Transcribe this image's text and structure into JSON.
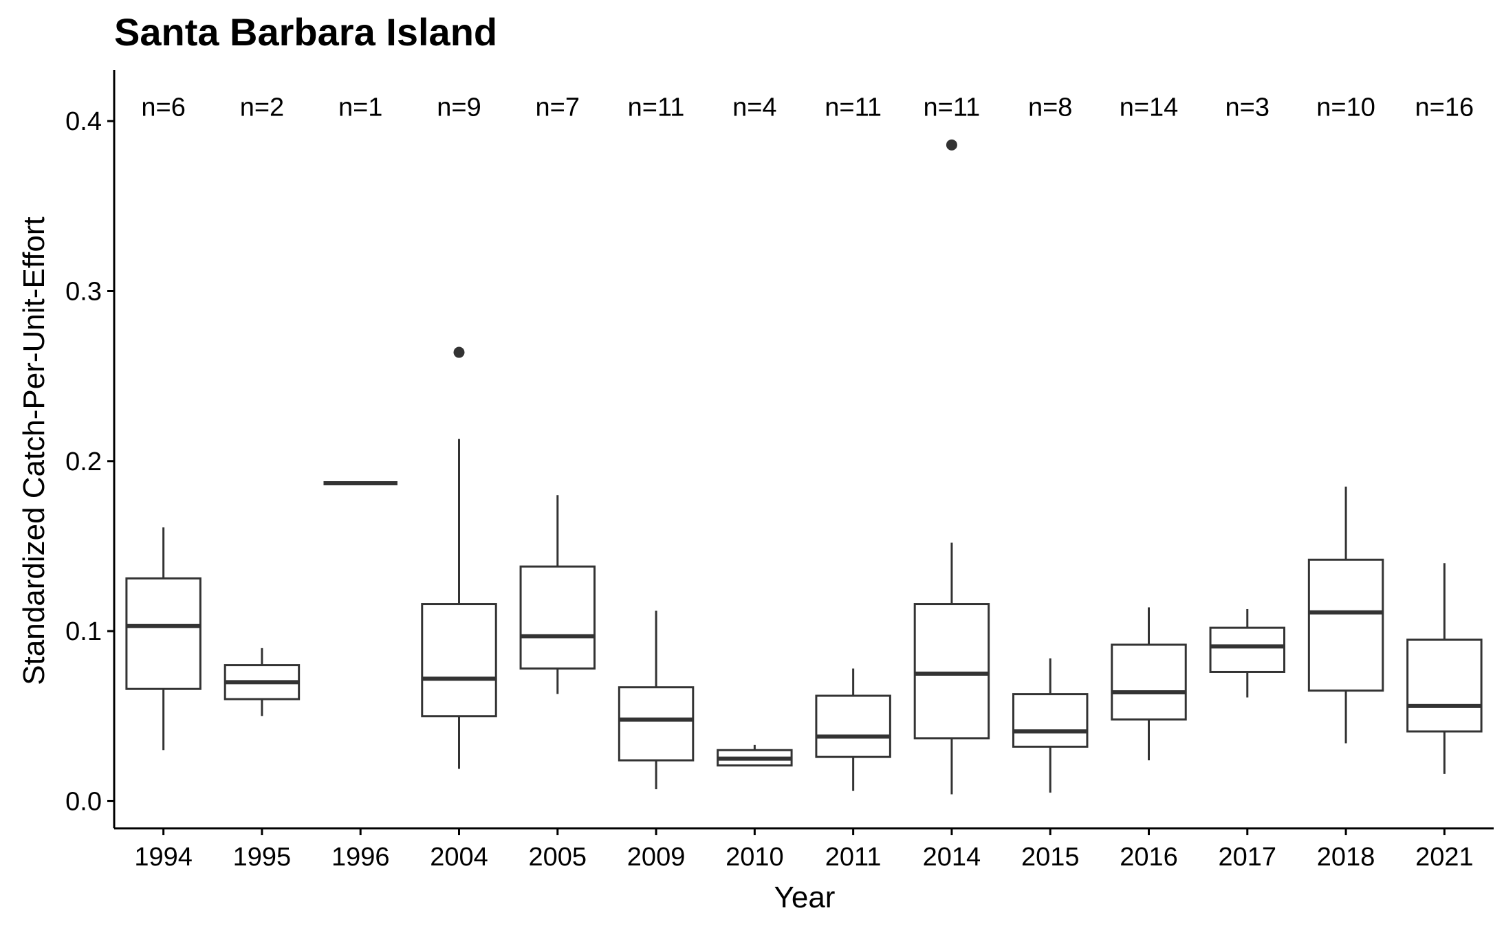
{
  "chart_data": {
    "type": "boxplot",
    "title": "Santa Barbara Island",
    "xlabel": "Year",
    "ylabel": "Standardized Catch-Per-Unit-Effort",
    "ylim": [
      -0.016,
      0.43
    ],
    "yticks": [
      "0.0",
      "0.1",
      "0.2",
      "0.3",
      "0.4"
    ],
    "ytick_values": [
      0.0,
      0.1,
      0.2,
      0.3,
      0.4
    ],
    "grid": false,
    "categories": [
      "1994",
      "1995",
      "1996",
      "2004",
      "2005",
      "2009",
      "2010",
      "2011",
      "2014",
      "2015",
      "2016",
      "2017",
      "2018",
      "2021"
    ],
    "boxes": [
      {
        "year": "1994",
        "n_label": "n=6",
        "whisker_low": 0.03,
        "q1": 0.066,
        "median": 0.103,
        "q3": 0.131,
        "whisker_high": 0.161,
        "outliers": []
      },
      {
        "year": "1995",
        "n_label": "n=2",
        "whisker_low": 0.05,
        "q1": 0.06,
        "median": 0.07,
        "q3": 0.08,
        "whisker_high": 0.09,
        "outliers": []
      },
      {
        "year": "1996",
        "n_label": "n=1",
        "whisker_low": 0.187,
        "q1": 0.187,
        "median": 0.187,
        "q3": 0.187,
        "whisker_high": 0.187,
        "outliers": []
      },
      {
        "year": "2004",
        "n_label": "n=9",
        "whisker_low": 0.019,
        "q1": 0.05,
        "median": 0.072,
        "q3": 0.116,
        "whisker_high": 0.213,
        "outliers": [
          0.264
        ]
      },
      {
        "year": "2005",
        "n_label": "n=7",
        "whisker_low": 0.063,
        "q1": 0.078,
        "median": 0.097,
        "q3": 0.138,
        "whisker_high": 0.18,
        "outliers": []
      },
      {
        "year": "2009",
        "n_label": "n=11",
        "whisker_low": 0.007,
        "q1": 0.024,
        "median": 0.048,
        "q3": 0.067,
        "whisker_high": 0.112,
        "outliers": []
      },
      {
        "year": "2010",
        "n_label": "n=4",
        "whisker_low": 0.021,
        "q1": 0.021,
        "median": 0.025,
        "q3": 0.03,
        "whisker_high": 0.033,
        "outliers": []
      },
      {
        "year": "2011",
        "n_label": "n=11",
        "whisker_low": 0.006,
        "q1": 0.026,
        "median": 0.038,
        "q3": 0.062,
        "whisker_high": 0.078,
        "outliers": []
      },
      {
        "year": "2014",
        "n_label": "n=11",
        "whisker_low": 0.004,
        "q1": 0.037,
        "median": 0.075,
        "q3": 0.116,
        "whisker_high": 0.152,
        "outliers": [
          0.386
        ]
      },
      {
        "year": "2015",
        "n_label": "n=8",
        "whisker_low": 0.005,
        "q1": 0.032,
        "median": 0.041,
        "q3": 0.063,
        "whisker_high": 0.084,
        "outliers": []
      },
      {
        "year": "2016",
        "n_label": "n=14",
        "whisker_low": 0.024,
        "q1": 0.048,
        "median": 0.064,
        "q3": 0.092,
        "whisker_high": 0.114,
        "outliers": []
      },
      {
        "year": "2017",
        "n_label": "n=3",
        "whisker_low": 0.061,
        "q1": 0.076,
        "median": 0.091,
        "q3": 0.102,
        "whisker_high": 0.113,
        "outliers": []
      },
      {
        "year": "2018",
        "n_label": "n=10",
        "whisker_low": 0.034,
        "q1": 0.065,
        "median": 0.111,
        "q3": 0.142,
        "whisker_high": 0.185,
        "outliers": []
      },
      {
        "year": "2021",
        "n_label": "n=16",
        "whisker_low": 0.016,
        "q1": 0.041,
        "median": 0.056,
        "q3": 0.095,
        "whisker_high": 0.14,
        "outliers": []
      }
    ],
    "n_label_y": 0.408
  }
}
